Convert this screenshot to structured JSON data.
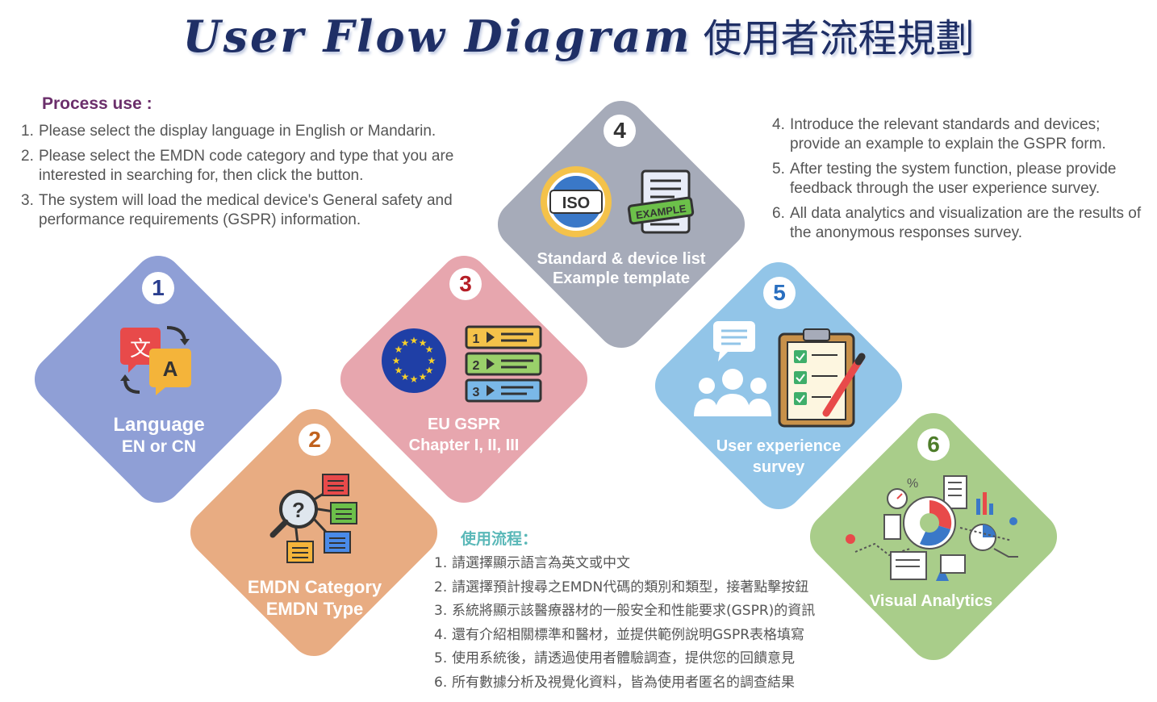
{
  "title": {
    "en": "User Flow Diagram",
    "cn": "使用者流程規劃"
  },
  "process_en": {
    "heading": "Process use :",
    "items": [
      {
        "num": "1.",
        "text": "Please select the display language in English or Mandarin."
      },
      {
        "num": "2.",
        "text": "Please select the EMDN code category and type that you are interested in searching for, then click the button."
      },
      {
        "num": "3.",
        "text": "The system will load the medical device's General safety and performance requirements (GSPR) information."
      }
    ]
  },
  "process_en_right": {
    "items": [
      {
        "num": "4.",
        "text": "Introduce the relevant standards and devices; provide an example to explain the GSPR form."
      },
      {
        "num": "5.",
        "text": "After testing the system function, please provide feedback through the user experience survey."
      },
      {
        "num": "6.",
        "text": "All data analytics and visualization are the results of the anonymous responses survey."
      }
    ]
  },
  "process_cn": {
    "heading": "使用流程：",
    "items": [
      {
        "num": "1.",
        "text": "請選擇顯示語言為英文或中文"
      },
      {
        "num": "2.",
        "text": "請選擇預計搜尋之EMDN代碼的類別和類型，接著點擊按鈕"
      },
      {
        "num": "3.",
        "text": "系統將顯示該醫療器材的一般安全和性能要求(GSPR)的資訊"
      },
      {
        "num": "4.",
        "text": "還有介紹相關標準和醫材，並提供範例說明GSPR表格填寫"
      },
      {
        "num": "5.",
        "text": "使用系統後，請透過使用者體驗調查，提供您的回饋意見"
      },
      {
        "num": "6.",
        "text": "所有數據分析及視覺化資料，皆為使用者匿名的調查結果"
      }
    ]
  },
  "steps": [
    {
      "num": "1",
      "line1": "Language",
      "line2": "EN or CN",
      "color": "#8f9fd6",
      "num_color": "#2b3f8f",
      "icon": "translate-icon"
    },
    {
      "num": "2",
      "line1": "EMDN Category",
      "line2": "EMDN Type",
      "color": "#e8ac82",
      "num_color": "#c0621e",
      "icon": "search-network-icon"
    },
    {
      "num": "3",
      "line1": "EU GSPR",
      "line2": "Chapter I, II, III",
      "color": "#e7a6ae",
      "num_color": "#b51e26",
      "icon": "eu-flag-icon"
    },
    {
      "num": "4",
      "line1": "Standard & device list",
      "line2": "Example template",
      "color": "#a6abb9",
      "num_color": "#333333",
      "icon": "iso-badge-icon"
    },
    {
      "num": "5",
      "line1": "User experience",
      "line2": "survey",
      "color": "#92c5e8",
      "num_color": "#2a6fc0",
      "icon": "survey-clipboard-icon"
    },
    {
      "num": "6",
      "line1": "Visual Analytics",
      "line2": "",
      "color": "#a9cd8a",
      "num_color": "#4e7d2a",
      "icon": "analytics-dashboard-icon"
    }
  ],
  "icon_text": {
    "translate_a": "文",
    "translate_b": "A",
    "iso": "ISO",
    "example": "EXAMPLE",
    "list_1": "1",
    "list_2": "2",
    "list_3": "3"
  },
  "colors": {
    "title": "#1f2f66",
    "heading_en": "#6b2f6b",
    "heading_cn": "#5ab8b8",
    "body_text": "#555555"
  }
}
